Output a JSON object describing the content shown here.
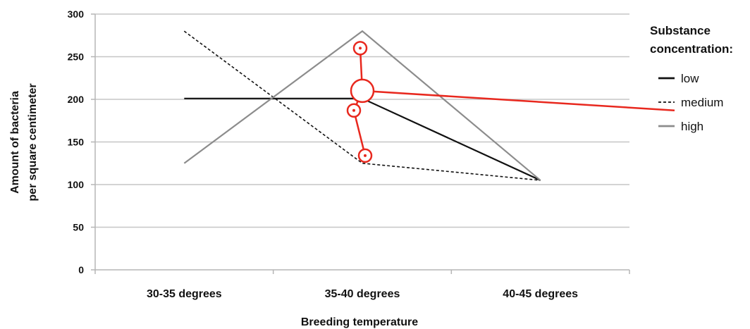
{
  "chart_data": {
    "type": "line",
    "categories": [
      "30-35 degrees",
      "35-40 degrees",
      "40-45 degrees"
    ],
    "series": [
      {
        "name": "low",
        "values": [
          201,
          201,
          105
        ],
        "color": "#111111",
        "dash": "solid"
      },
      {
        "name": "medium",
        "values": [
          280,
          125,
          105
        ],
        "color": "#111111",
        "dash": "dashed"
      },
      {
        "name": "high",
        "values": [
          125,
          280,
          105
        ],
        "color": "#8c8c8c",
        "dash": "solid"
      }
    ],
    "xlabel": "Breeding temperature",
    "ylabel_lines": [
      "Amount of bacteria",
      "per square centimeter"
    ],
    "ylim": [
      0,
      300
    ],
    "yticks": [
      0,
      50,
      100,
      150,
      200,
      250,
      300
    ],
    "grid": true,
    "legend": {
      "title_lines": [
        "Substance",
        "concentration:"
      ],
      "placement": "right"
    },
    "annotations": {
      "color": "#e8281e",
      "marked_points": [
        {
          "category": "35-40 degrees",
          "value": 260,
          "size": "small"
        },
        {
          "category": "35-40 degrees",
          "value": 210,
          "size": "large"
        },
        {
          "category": "35-40 degrees",
          "value": 187,
          "size": "small"
        },
        {
          "category": "35-40 degrees",
          "value": 134,
          "size": "small"
        }
      ]
    }
  }
}
